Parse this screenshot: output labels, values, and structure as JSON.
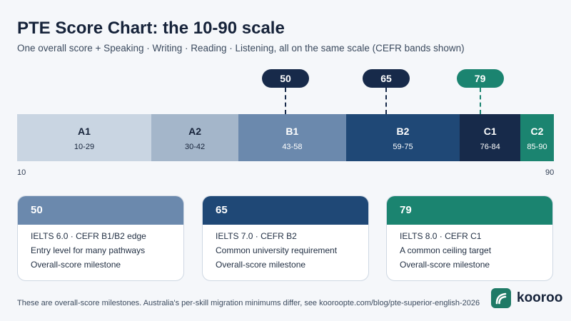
{
  "title": "PTE Score Chart: the 10-90 scale",
  "subtitle": "One overall score + Speaking · Writing · Reading · Listening, all on the same scale (CEFR bands shown)",
  "chart_data": {
    "type": "bar",
    "title": "PTE Score Chart: the 10-90 scale",
    "xlim": [
      10,
      90
    ],
    "axis_labels": [
      "10",
      "90"
    ],
    "bands": [
      {
        "label": "A1",
        "range": "10-29",
        "start": 10,
        "end": 29,
        "color": "#c9d5e2",
        "text_color": "#16233a"
      },
      {
        "label": "A2",
        "range": "30-42",
        "start": 30,
        "end": 42,
        "color": "#a4b6ca",
        "text_color": "#16233a"
      },
      {
        "label": "B1",
        "range": "43-58",
        "start": 43,
        "end": 58,
        "color": "#6b89ad",
        "text_color": "#ffffff"
      },
      {
        "label": "B2",
        "range": "59-75",
        "start": 59,
        "end": 75,
        "color": "#1f4876",
        "text_color": "#ffffff"
      },
      {
        "label": "C1",
        "range": "76-84",
        "start": 76,
        "end": 84,
        "color": "#172a4a",
        "text_color": "#ffffff"
      },
      {
        "label": "C2",
        "range": "85-90",
        "start": 85,
        "end": 90,
        "color": "#1b8470",
        "text_color": "#ffffff"
      }
    ],
    "markers": [
      {
        "value": 50,
        "label": "50",
        "color": "#172a4a"
      },
      {
        "value": 65,
        "label": "65",
        "color": "#172a4a"
      },
      {
        "value": 79,
        "label": "79",
        "color": "#1b8470"
      }
    ]
  },
  "cards": [
    {
      "score": "50",
      "color": "#6b89ad",
      "lines": [
        "IELTS 6.0 · CEFR B1/B2 edge",
        "Entry level for many pathways",
        "Overall-score milestone"
      ]
    },
    {
      "score": "65",
      "color": "#1f4876",
      "lines": [
        "IELTS 7.0 · CEFR B2",
        "Common university requirement",
        "Overall-score milestone"
      ]
    },
    {
      "score": "79",
      "color": "#1b8470",
      "lines": [
        "IELTS 8.0 · CEFR C1",
        "A common ceiling target",
        "Overall-score milestone"
      ]
    }
  ],
  "footer": "These are overall-score milestones. Australia's per-skill migration minimums differ, see kooroopte.com/blog/pte-superior-english-2026",
  "brand": {
    "name": "kooroo",
    "icon": "kooroo-logo-icon",
    "color": "#1e7a66"
  }
}
